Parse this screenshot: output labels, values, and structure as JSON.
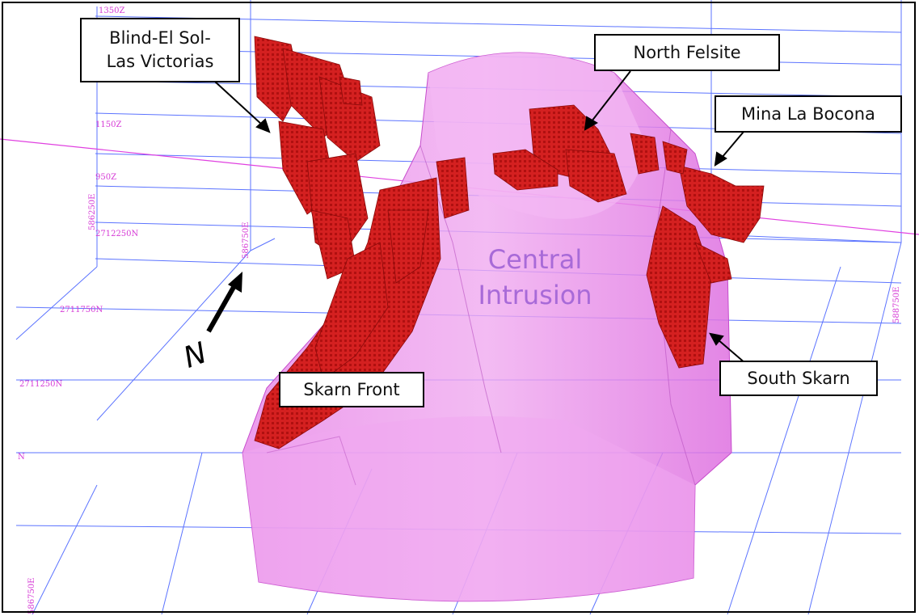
{
  "callouts": {
    "blind": [
      "Blind-El Sol-",
      "Las Victorias"
    ],
    "north_felsite": "North Felsite",
    "mina_la_bocona": "Mina La Bocona",
    "skarn_front": "Skarn Front",
    "south_skarn": "South Skarn"
  },
  "central_label": [
    "Central",
    "Intrusion"
  ],
  "north_letter": "N",
  "grid_labels": {
    "z_1350": "1350Z",
    "z_1150": "1150Z",
    "z_950": "950Z",
    "n_2712250": "2712250N",
    "n_2711750": "2711750N",
    "n_2711250": "2711250N",
    "e_586250": "586250E",
    "e_586750": "586750E",
    "e_588750": "588750E",
    "e_586750b": "586750E",
    "e_small": "N"
  },
  "colors": {
    "intrusion": "#e37ae8",
    "ore": "#d42020",
    "grid": "#3f5bff",
    "grid_magenta": "#e040e0"
  }
}
